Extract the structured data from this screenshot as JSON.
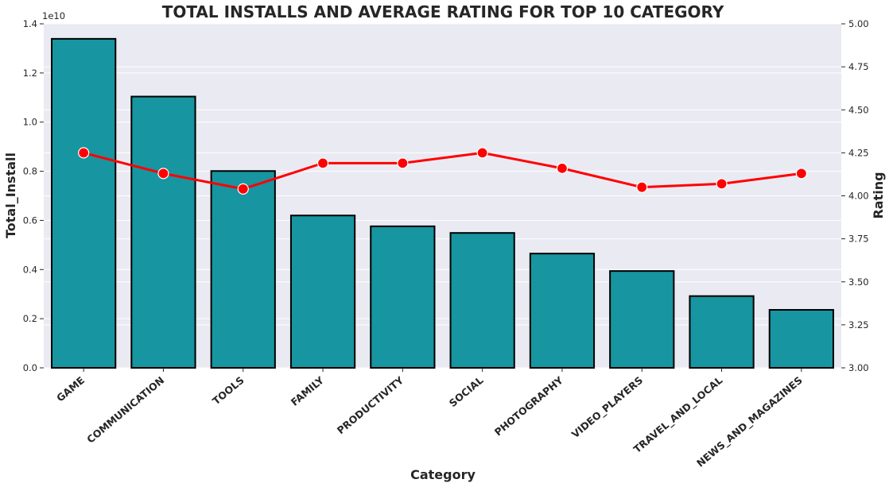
{
  "chart_data": {
    "type": "bar",
    "title": "TOTAL INSTALLS AND AVERAGE RATING FOR TOP 10 CATEGORY",
    "xlabel": "Category",
    "ylabel": "Total_Install",
    "y2label": "Rating",
    "y_offset_label": "1e10",
    "categories": [
      "GAME",
      "COMMUNICATION",
      "TOOLS",
      "FAMILY",
      "PRODUCTIVITY",
      "SOCIAL",
      "PHOTOGRAPHY",
      "VIDEO_PLAYERS",
      "TRAVEL_AND_LOCAL",
      "NEWS_AND_MAGAZINES"
    ],
    "ylim": [
      0,
      1.4
    ],
    "y2lim": [
      3.0,
      5.0
    ],
    "y_ticks": [
      "0.0",
      "0.2",
      "0.4",
      "0.6",
      "0.8",
      "1.0",
      "1.2",
      "1.4"
    ],
    "y2_ticks": [
      "3.00",
      "3.25",
      "3.50",
      "3.75",
      "4.00",
      "4.25",
      "4.50",
      "4.75",
      "5.00"
    ],
    "series": [
      {
        "kind": "bar",
        "axis": "left",
        "color": "#1795A0",
        "values": [
          1.339,
          1.104,
          0.801,
          0.62,
          0.576,
          0.549,
          0.465,
          0.394,
          0.292,
          0.236
        ]
      },
      {
        "kind": "line",
        "axis": "right",
        "color": "#FF0000",
        "values": [
          4.25,
          4.13,
          4.04,
          4.19,
          4.19,
          4.25,
          4.16,
          4.05,
          4.07,
          4.13
        ]
      }
    ],
    "grid": true,
    "background": "#EAEAF2"
  }
}
